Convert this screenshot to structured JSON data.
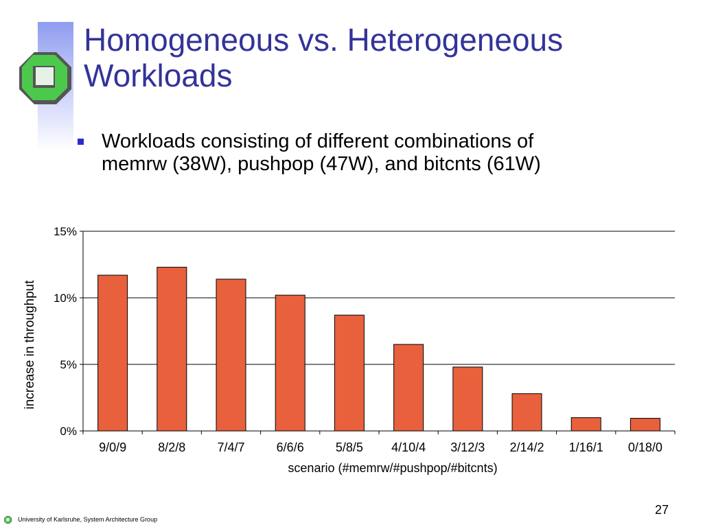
{
  "slide": {
    "title_lines": [
      "Homogeneous vs. Heterogeneous",
      "Workloads"
    ],
    "bullet_lines": [
      "Workloads consisting of different combinations of",
      "memrw (38W), pushpop (47W), and bitcnts (61W)"
    ],
    "footer": "University of Karlsruhe, System Architecture Group",
    "page_number": "27",
    "colors": {
      "title": "#333399",
      "bullet": "#2b2bcc",
      "bar": "#e8603c",
      "logo_green": "#4cc94c",
      "logo_dark": "#555555"
    }
  },
  "chart_data": {
    "type": "bar",
    "categories": [
      "9/0/9",
      "8/2/8",
      "7/4/7",
      "6/6/6",
      "5/8/5",
      "4/10/4",
      "3/12/3",
      "2/14/2",
      "1/16/1",
      "0/18/0"
    ],
    "values": [
      11.7,
      12.3,
      11.4,
      10.2,
      8.7,
      6.5,
      4.8,
      2.8,
      1.0,
      0.95
    ],
    "xlabel": "scenario (#memrw/#pushpop/#bitcnts)",
    "ylabel": "increase in throughput",
    "ylim": [
      0,
      15
    ],
    "yticks": [
      "0%",
      "5%",
      "10%",
      "15%"
    ],
    "grid": true,
    "legend": "none"
  }
}
